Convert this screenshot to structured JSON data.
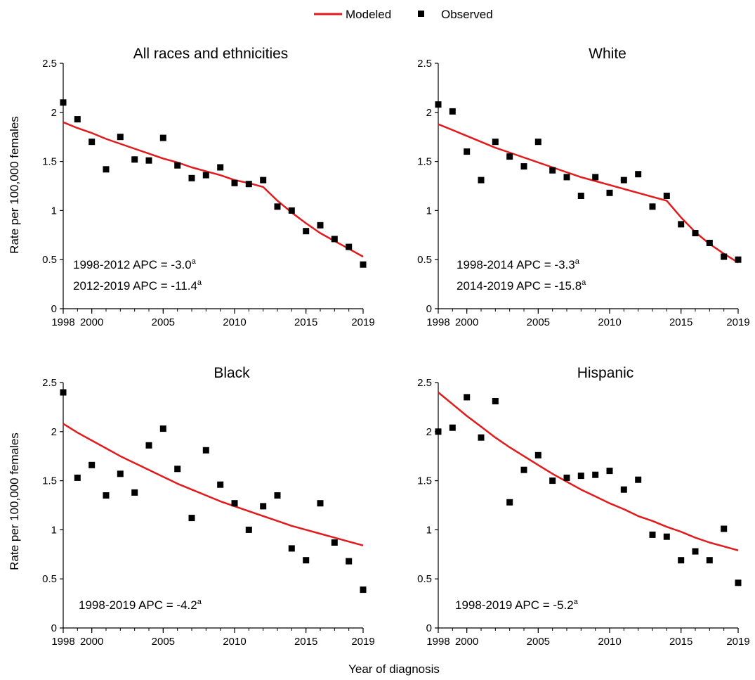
{
  "legend": {
    "modeled": "Modeled",
    "observed": "Observed"
  },
  "colors": {
    "modeled": "#e31a1c",
    "observed": "#000000"
  },
  "shared": {
    "xlabel": "Year of diagnosis",
    "ylabel": "Rate per 100,000 females",
    "xticks": [
      "1998",
      "2000",
      "2005",
      "2010",
      "2015",
      "2019"
    ],
    "yticks": [
      "0",
      "0.5",
      "1",
      "1.5",
      "2",
      "2.5"
    ]
  },
  "chart_data": [
    {
      "type": "line",
      "title": "All races and ethnicities",
      "xlim": [
        1998,
        2019
      ],
      "ylim": [
        0,
        2.5
      ],
      "x": [
        1998,
        1999,
        2000,
        2001,
        2002,
        2003,
        2004,
        2005,
        2006,
        2007,
        2008,
        2009,
        2010,
        2011,
        2012,
        2013,
        2014,
        2015,
        2016,
        2017,
        2018,
        2019
      ],
      "series": [
        {
          "name": "Modeled",
          "values": [
            1.9,
            1.84,
            1.79,
            1.73,
            1.68,
            1.63,
            1.58,
            1.53,
            1.49,
            1.44,
            1.4,
            1.36,
            1.31,
            1.28,
            1.24,
            1.1,
            0.98,
            0.87,
            0.77,
            0.69,
            0.61,
            0.53
          ]
        },
        {
          "name": "Observed",
          "values": [
            2.1,
            1.93,
            1.7,
            1.42,
            1.75,
            1.52,
            1.51,
            1.74,
            1.46,
            1.33,
            1.36,
            1.44,
            1.28,
            1.27,
            1.31,
            1.04,
            1.0,
            0.79,
            0.85,
            0.71,
            0.63,
            0.45
          ]
        }
      ],
      "annotations": [
        {
          "label": "1998-2012 APC = -3.0",
          "sup": "a"
        },
        {
          "label": "2012-2019 APC = -11.4",
          "sup": "a"
        }
      ]
    },
    {
      "type": "line",
      "title": "White",
      "xlim": [
        1998,
        2019
      ],
      "ylim": [
        0,
        2.5
      ],
      "x": [
        1998,
        1999,
        2000,
        2001,
        2002,
        2003,
        2004,
        2005,
        2006,
        2007,
        2008,
        2009,
        2010,
        2011,
        2012,
        2013,
        2014,
        2015,
        2016,
        2017,
        2018,
        2019
      ],
      "series": [
        {
          "name": "Modeled",
          "values": [
            1.88,
            1.82,
            1.76,
            1.7,
            1.64,
            1.59,
            1.54,
            1.49,
            1.44,
            1.39,
            1.34,
            1.3,
            1.26,
            1.22,
            1.18,
            1.14,
            1.1,
            0.93,
            0.78,
            0.66,
            0.56,
            0.47
          ]
        },
        {
          "name": "Observed",
          "values": [
            2.08,
            2.01,
            1.6,
            1.31,
            1.7,
            1.55,
            1.45,
            1.7,
            1.41,
            1.34,
            1.15,
            1.34,
            1.18,
            1.31,
            1.37,
            1.04,
            1.15,
            0.86,
            0.77,
            0.67,
            0.53,
            0.5
          ]
        }
      ],
      "annotations": [
        {
          "label": "1998-2014 APC = -3.3",
          "sup": "a"
        },
        {
          "label": "2014-2019 APC = -15.8",
          "sup": "a"
        }
      ]
    },
    {
      "type": "line",
      "title": "Black",
      "xlim": [
        1998,
        2019
      ],
      "ylim": [
        0,
        2.5
      ],
      "x": [
        1998,
        1999,
        2000,
        2001,
        2002,
        2003,
        2004,
        2005,
        2006,
        2007,
        2008,
        2009,
        2010,
        2011,
        2012,
        2013,
        2014,
        2015,
        2016,
        2017,
        2018,
        2019
      ],
      "series": [
        {
          "name": "Modeled",
          "values": [
            2.08,
            1.99,
            1.91,
            1.83,
            1.75,
            1.68,
            1.61,
            1.54,
            1.47,
            1.41,
            1.35,
            1.29,
            1.24,
            1.19,
            1.14,
            1.09,
            1.04,
            1.0,
            0.96,
            0.92,
            0.88,
            0.84
          ]
        },
        {
          "name": "Observed",
          "values": [
            2.4,
            1.53,
            1.66,
            1.35,
            1.57,
            1.38,
            1.86,
            2.03,
            1.62,
            1.12,
            1.81,
            1.46,
            1.27,
            1.0,
            1.24,
            1.35,
            0.81,
            0.69,
            1.27,
            0.87,
            0.68,
            0.39
          ]
        }
      ],
      "annotations": [
        {
          "label": "1998-2019 APC = -4.2",
          "sup": "a"
        }
      ]
    },
    {
      "type": "line",
      "title": "Hispanic",
      "xlim": [
        1998,
        2019
      ],
      "ylim": [
        0,
        2.5
      ],
      "x": [
        1998,
        1999,
        2000,
        2001,
        2002,
        2003,
        2004,
        2005,
        2006,
        2007,
        2008,
        2009,
        2010,
        2011,
        2012,
        2013,
        2014,
        2015,
        2016,
        2017,
        2018,
        2019
      ],
      "series": [
        {
          "name": "Modeled",
          "values": [
            2.4,
            2.28,
            2.16,
            2.05,
            1.94,
            1.84,
            1.75,
            1.66,
            1.57,
            1.49,
            1.41,
            1.34,
            1.27,
            1.21,
            1.14,
            1.09,
            1.03,
            0.98,
            0.92,
            0.87,
            0.83,
            0.79
          ]
        },
        {
          "name": "Observed",
          "values": [
            2.0,
            2.04,
            2.35,
            1.94,
            2.31,
            1.28,
            1.61,
            1.76,
            1.5,
            1.53,
            1.55,
            1.56,
            1.6,
            1.41,
            1.51,
            0.95,
            0.93,
            0.69,
            0.78,
            0.69,
            1.01,
            0.46
          ]
        }
      ],
      "annotations": [
        {
          "label": "1998-2019 APC = -5.2",
          "sup": "a"
        }
      ]
    }
  ]
}
